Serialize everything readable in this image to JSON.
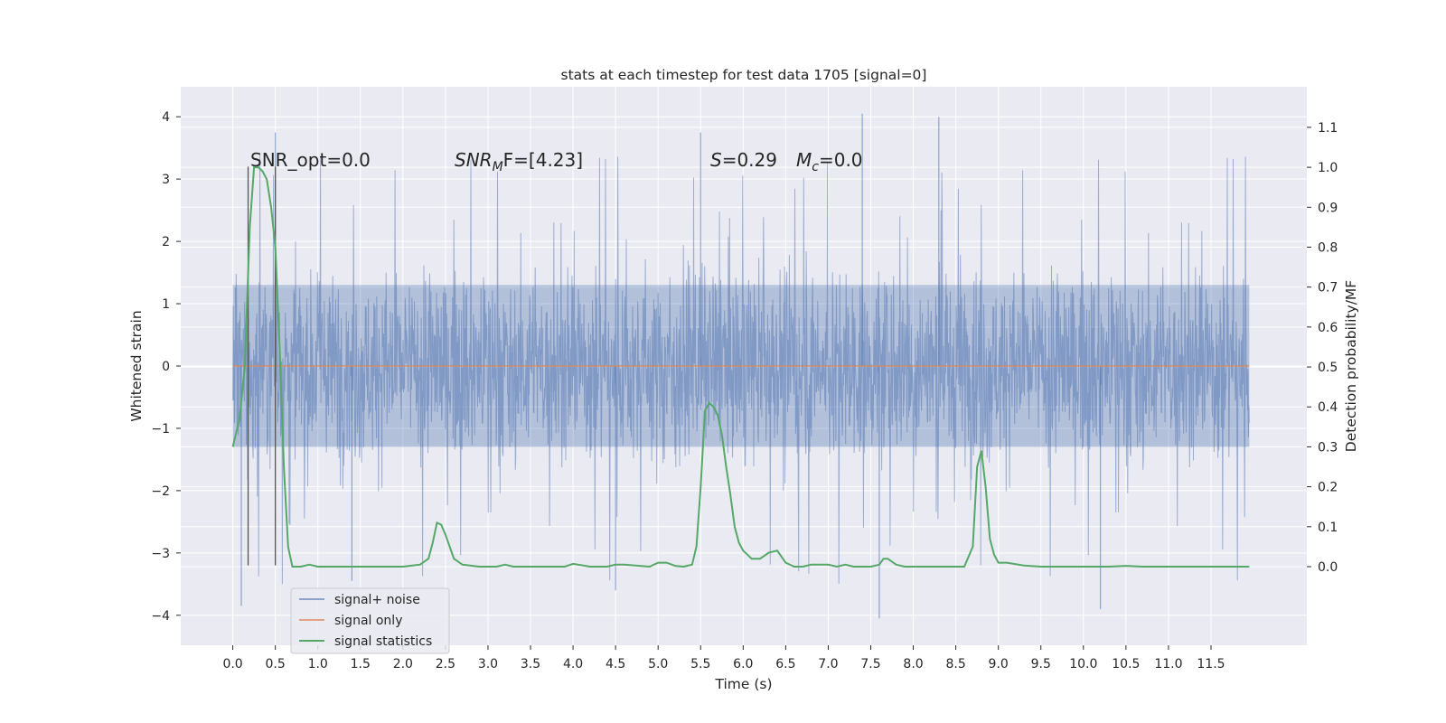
{
  "chart_data": {
    "type": "line",
    "title": "stats at each timestep for test data 1705 [signal=0]",
    "xlabel": "Time (s)",
    "ylabel": "Whitened strain",
    "y2label": "Detection probability/MF",
    "xlim": [
      -0.25,
      12.95
    ],
    "ylim": [
      -4.45,
      4.45
    ],
    "y2lim": [
      -0.2,
      1.2
    ],
    "grid": true,
    "legend_position": "lower-left",
    "x_ticks": [
      "0.0",
      "0.5",
      "1.0",
      "1.5",
      "2.0",
      "2.5",
      "3.0",
      "3.5",
      "4.0",
      "4.5",
      "5.0",
      "5.5",
      "6.0",
      "6.5",
      "7.0",
      "7.5",
      "8.0",
      "8.5",
      "9.0",
      "9.5",
      "10.0",
      "10.5",
      "11.0",
      "11.5"
    ],
    "y_ticks": [
      "−4",
      "−3",
      "−2",
      "−1",
      "0",
      "1",
      "2",
      "3",
      "4"
    ],
    "y2_ticks": [
      "0.0",
      "0.1",
      "0.2",
      "0.3",
      "0.4",
      "0.5",
      "0.6",
      "0.7",
      "0.8",
      "0.9",
      "1.0",
      "1.1"
    ],
    "annotations": {
      "snr_opt": "SNR_opt=0.0",
      "snr_mf_base": "SNR",
      "snr_mf_sub": "M",
      "snr_mf_rest": "F=[4.23]",
      "s_label": "S",
      "s_value": "=0.29",
      "mc_label": "M",
      "mc_sub": "c",
      "mc_value": "=0.0"
    },
    "legend": [
      {
        "label": "signal+ noise",
        "color": "#4c72b0"
      },
      {
        "label": "signal only",
        "color": "#dd8452"
      },
      {
        "label": "signal statistics",
        "color": "#55a868"
      }
    ],
    "colors": {
      "background": "#eaeaf2",
      "grid": "#ffffff",
      "noise": "#4c72b0",
      "signal": "#dd8452",
      "stats": "#55a868",
      "marker_lines": "#555555"
    },
    "series": [
      {
        "name": "signal+ noise",
        "description_range": "dense whitened strain noise between about -4.1 and 4.1, core band about ±1.3",
        "envelope_peaks": [
          {
            "x": 0.5,
            "y": 3.75
          },
          {
            "x": 1.4,
            "y": -3.45
          },
          {
            "x": 4.5,
            "y": -3.6
          },
          {
            "x": 5.5,
            "y": 3.75
          },
          {
            "x": 7.4,
            "y": 4.05
          },
          {
            "x": 7.6,
            "y": -4.05
          },
          {
            "x": 8.3,
            "y": 4.0
          },
          {
            "x": 10.2,
            "y": -3.9
          },
          {
            "x": 0.1,
            "y": -3.85
          }
        ]
      },
      {
        "name": "signal only",
        "x": [
          0.0,
          11.95
        ],
        "y": [
          0.0,
          0.0
        ]
      },
      {
        "name": "signal statistics",
        "axis": "right",
        "x": [
          0.0,
          0.08,
          0.14,
          0.2,
          0.25,
          0.3,
          0.35,
          0.4,
          0.45,
          0.5,
          0.55,
          0.6,
          0.65,
          0.7,
          0.8,
          0.9,
          1.0,
          1.1,
          1.5,
          2.0,
          2.2,
          2.3,
          2.35,
          2.4,
          2.45,
          2.5,
          2.55,
          2.6,
          2.7,
          2.9,
          3.1,
          3.2,
          3.3,
          3.6,
          3.9,
          4.0,
          4.2,
          4.4,
          4.5,
          4.6,
          4.9,
          5.0,
          5.1,
          5.2,
          5.3,
          5.4,
          5.45,
          5.5,
          5.55,
          5.6,
          5.65,
          5.7,
          5.75,
          5.8,
          5.85,
          5.9,
          5.95,
          6.0,
          6.05,
          6.1,
          6.2,
          6.3,
          6.4,
          6.5,
          6.6,
          6.7,
          6.8,
          7.0,
          7.1,
          7.2,
          7.3,
          7.5,
          7.6,
          7.65,
          7.7,
          7.8,
          7.9,
          8.0,
          8.3,
          8.6,
          8.7,
          8.75,
          8.8,
          8.85,
          8.9,
          8.95,
          9.0,
          9.1,
          9.3,
          9.5,
          9.9,
          10.3,
          10.5,
          10.7,
          11.0,
          11.3,
          11.5,
          11.95
        ],
        "y": [
          0.3,
          0.37,
          0.5,
          0.85,
          1.0,
          1.0,
          0.99,
          0.97,
          0.9,
          0.8,
          0.55,
          0.25,
          0.05,
          0.0,
          0.0,
          0.005,
          0.0,
          0.0,
          0.0,
          0.0,
          0.005,
          0.02,
          0.06,
          0.11,
          0.105,
          0.08,
          0.05,
          0.02,
          0.005,
          0.0,
          0.0,
          0.005,
          0.0,
          0.0,
          0.0,
          0.007,
          0.0,
          0.0,
          0.005,
          0.005,
          0.0,
          0.01,
          0.01,
          0.002,
          0.0,
          0.005,
          0.05,
          0.2,
          0.39,
          0.41,
          0.4,
          0.38,
          0.33,
          0.25,
          0.18,
          0.1,
          0.06,
          0.04,
          0.03,
          0.02,
          0.02,
          0.035,
          0.04,
          0.01,
          0.0,
          0.0,
          0.005,
          0.005,
          0.0,
          0.005,
          0.0,
          0.0,
          0.005,
          0.02,
          0.02,
          0.005,
          0.0,
          0.0,
          0.0,
          0.0,
          0.05,
          0.25,
          0.29,
          0.2,
          0.07,
          0.03,
          0.01,
          0.01,
          0.003,
          0.0,
          0.0,
          0.0,
          0.002,
          0.0,
          0.0,
          0.0,
          0.0,
          0.0
        ]
      }
    ],
    "vertical_lines": [
      {
        "x": 0.18,
        "ymin": -3.2,
        "ymax": 3.2
      },
      {
        "x": 0.5,
        "ymin": -3.2,
        "ymax": 3.2
      }
    ]
  }
}
